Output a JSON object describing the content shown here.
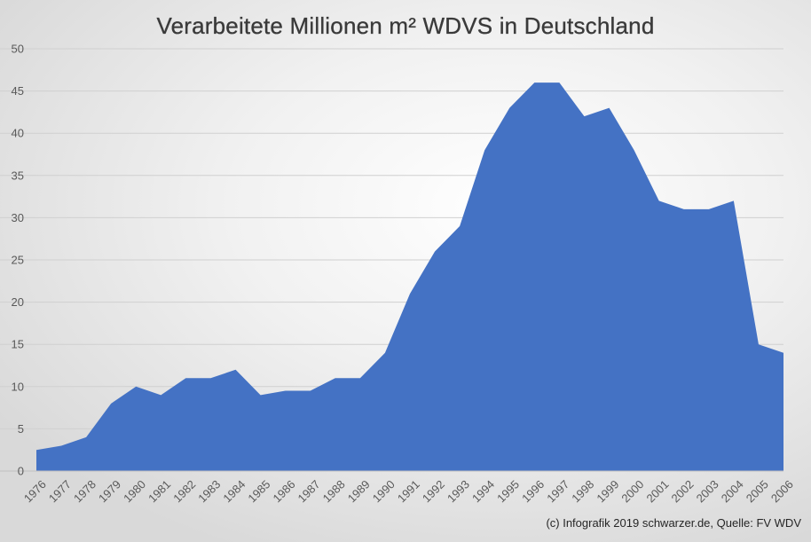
{
  "chart_data": {
    "type": "area",
    "title": "Verarbeitete Millionen m² WDVS in Deutschland",
    "xlabel": "",
    "ylabel": "",
    "categories": [
      "1976",
      "1977",
      "1978",
      "1979",
      "1980",
      "1981",
      "1982",
      "1983",
      "1984",
      "1985",
      "1986",
      "1987",
      "1988",
      "1989",
      "1990",
      "1991",
      "1992",
      "1993",
      "1994",
      "1995",
      "1996",
      "1997",
      "1998",
      "1999",
      "2000",
      "2001",
      "2002",
      "2003",
      "2004",
      "2005",
      "2006"
    ],
    "values": [
      2.5,
      3,
      4,
      8,
      10,
      9,
      11,
      11,
      12,
      9,
      9.5,
      9.5,
      11,
      11,
      14,
      21,
      26,
      29,
      38,
      43,
      46,
      46,
      42,
      43,
      38,
      32,
      31,
      31,
      32,
      15,
      14
    ],
    "ylim": [
      0,
      50
    ],
    "yticks": [
      0,
      5,
      10,
      15,
      20,
      25,
      30,
      35,
      40,
      45,
      50
    ],
    "grid": true,
    "legend": "none",
    "colors": {
      "area": "#4472c4",
      "gridline": "#d0d0d0",
      "axis": "#bfbfbf"
    },
    "annotation": "(c) Infografik 2019 schwarzer.de, Quelle: FV WDV"
  }
}
